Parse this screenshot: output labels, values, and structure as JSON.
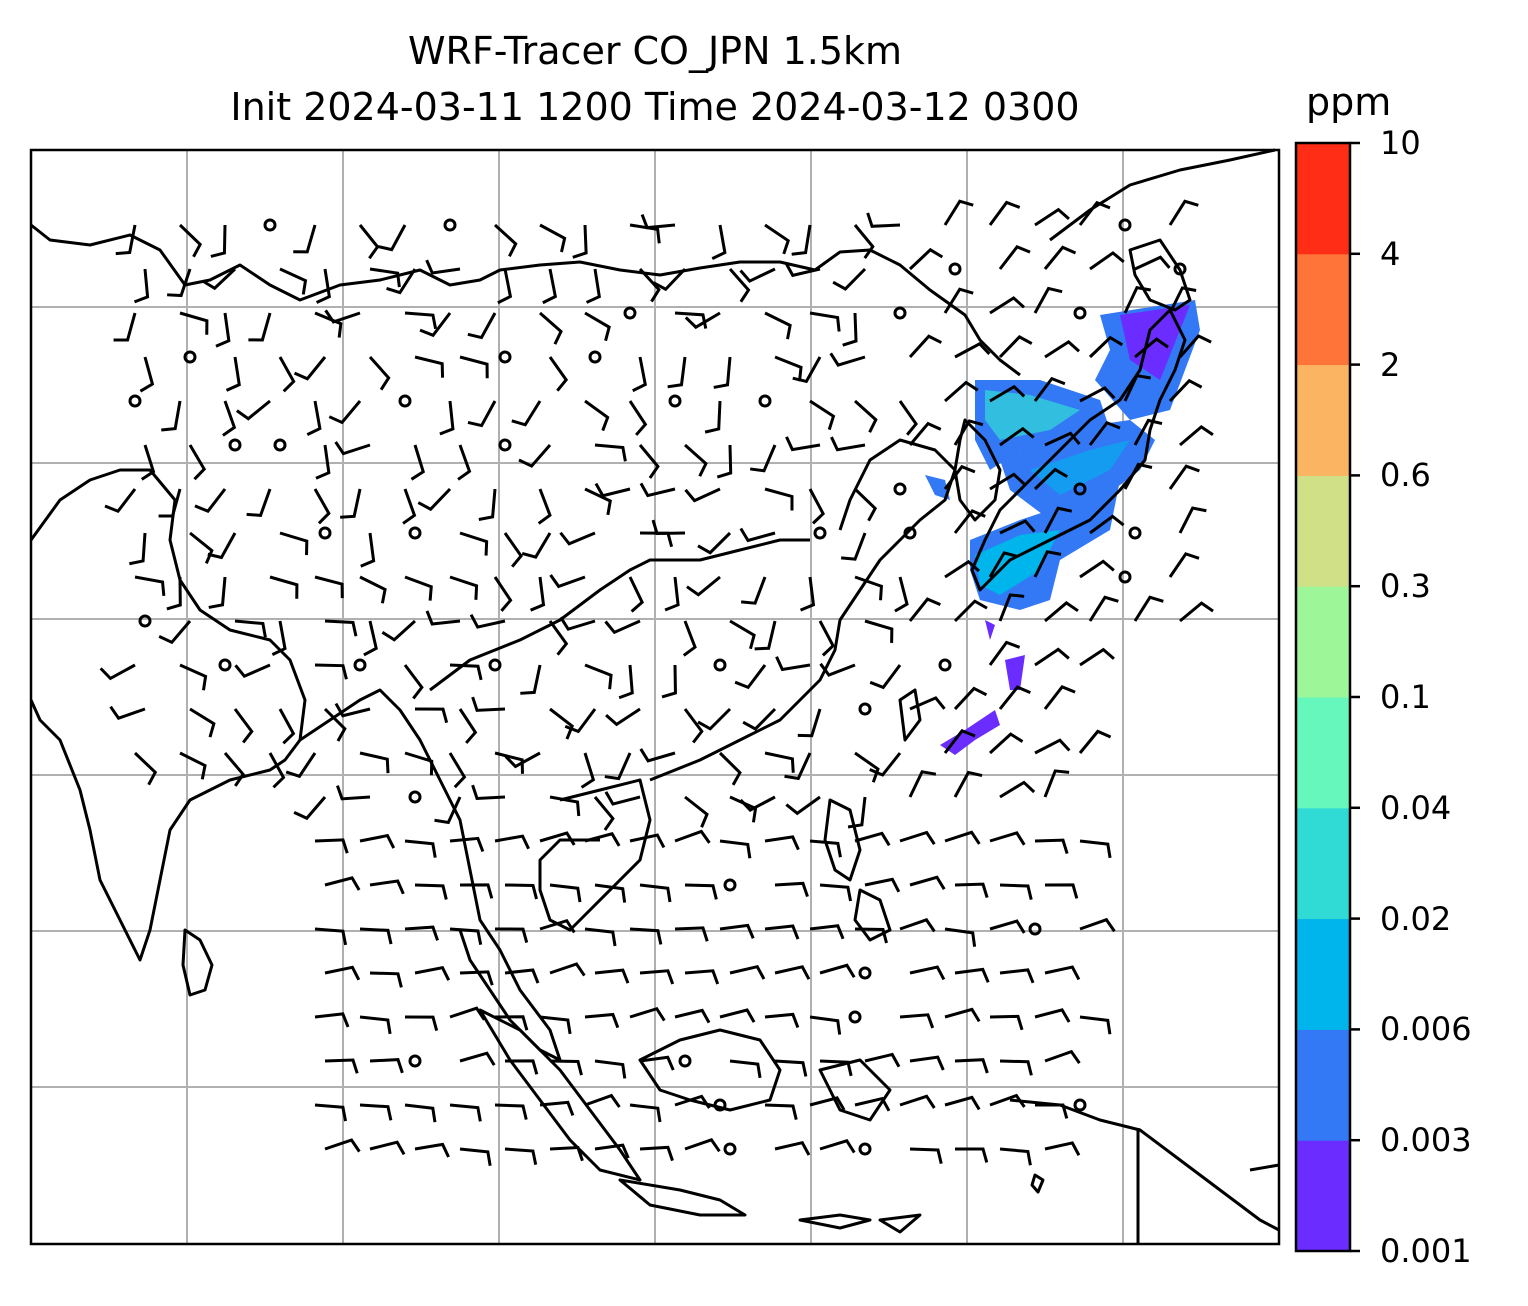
{
  "title": {
    "line1": "WRF-Tracer CO_JPN 1.5km",
    "line2": "Init 2024-03-11 1200 Time 2024-03-12 0300"
  },
  "map": {
    "region": "East and Southeast Asia",
    "gridlines": true,
    "wind_barbs": true,
    "coastlines": true,
    "field": "CO tracer concentration plume over Japan and East China Sea"
  },
  "colorbar": {
    "unit": "ppm",
    "ticks": [
      "0.001",
      "0.003",
      "0.006",
      "0.02",
      "0.04",
      "0.1",
      "0.3",
      "0.6",
      "2",
      "4",
      "10"
    ],
    "colors": [
      "#6a2cff",
      "#3378f5",
      "#00b4ec",
      "#30dbd6",
      "#66f7bd",
      "#9df698",
      "#cfe086",
      "#fbb461",
      "#ff7438",
      "#ff2c16"
    ]
  }
}
